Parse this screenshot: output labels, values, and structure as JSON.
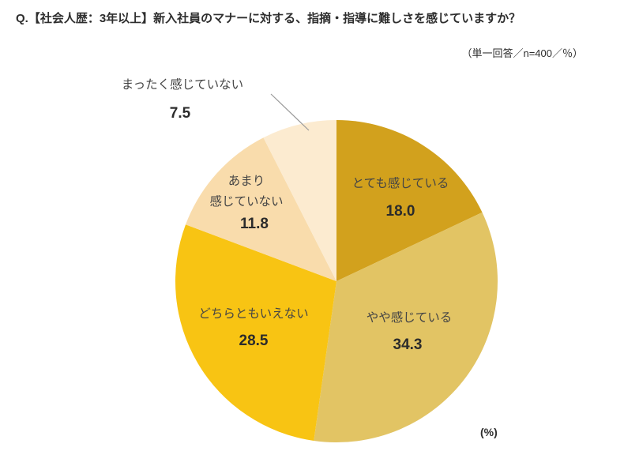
{
  "header": {
    "title": "Q.【社会人歴：3年以上】新入社員のマナーに対する、指摘・指導に難しさを感じていますか？",
    "subtitle": "（単一回答／n=400／％）"
  },
  "footnote": "(%)",
  "chart_data": {
    "type": "pie",
    "title": "新入社員のマナーに対する、指摘・指導に難しさを感じていますか",
    "sample_note": "n=400",
    "unit": "%",
    "start_angle_deg": 0,
    "direction": "clockwise",
    "legend": "labels-on-slices",
    "segments": [
      {
        "label": "とても感じている",
        "label_lines": [
          "とても感じている"
        ],
        "value": 18.0,
        "value_label": "18.0",
        "color": "#d2a11d"
      },
      {
        "label": "やや感じている",
        "label_lines": [
          "やや感じている"
        ],
        "value": 34.3,
        "value_label": "34.3",
        "color": "#e2c464"
      },
      {
        "label": "どちらともいえない",
        "label_lines": [
          "どちらともいえない"
        ],
        "value": 28.5,
        "value_label": "28.5",
        "color": "#f8c413"
      },
      {
        "label": "あまり感じていない",
        "label_lines": [
          "あまり",
          "感じていない"
        ],
        "value": 11.8,
        "value_label": "11.8",
        "color": "#f9dcac"
      },
      {
        "label": "まったく感じていない",
        "label_lines": [
          "まったく感じていない"
        ],
        "value": 7.5,
        "value_label": "7.5",
        "color": "#fcebd0"
      }
    ]
  }
}
